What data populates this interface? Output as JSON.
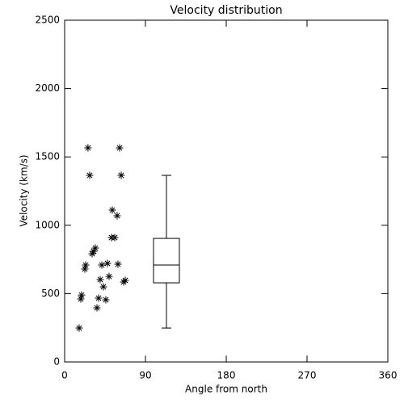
{
  "chart_data": {
    "type": "scatter",
    "title": "Velocity distribution",
    "x_label": "Angle from north",
    "y_label": "Velocity (km/s)",
    "x": [
      16.2,
      18,
      18.9,
      22.5,
      23.4,
      26,
      27.9,
      30.6,
      32.4,
      34.2,
      36,
      37.8,
      39.6,
      41.4,
      43.2,
      45.9,
      47.7,
      49.5,
      52.2,
      53.1,
      55.8,
      58.5,
      59.4,
      61.2,
      63,
      65.7,
      67.5
    ],
    "values": [
      248,
      461,
      490,
      680,
      709,
      1566,
      1365,
      792,
      810,
      833,
      396,
      467,
      603,
      709,
      550,
      455,
      721,
      626,
      910,
      1111,
      910,
      1070,
      715,
      1566,
      1365,
      585,
      597
    ],
    "color": "#000000",
    "box": {
      "x": 113.4,
      "min": 248,
      "q1": 579,
      "median": 709,
      "q3": 904,
      "max": 1365
    },
    "xlim": [
      0,
      360
    ],
    "xticks": [
      0,
      90,
      180,
      270,
      360
    ],
    "ylim": [
      0,
      2500
    ],
    "yticks": [
      0,
      500,
      1000,
      1500,
      2000,
      2500
    ]
  }
}
